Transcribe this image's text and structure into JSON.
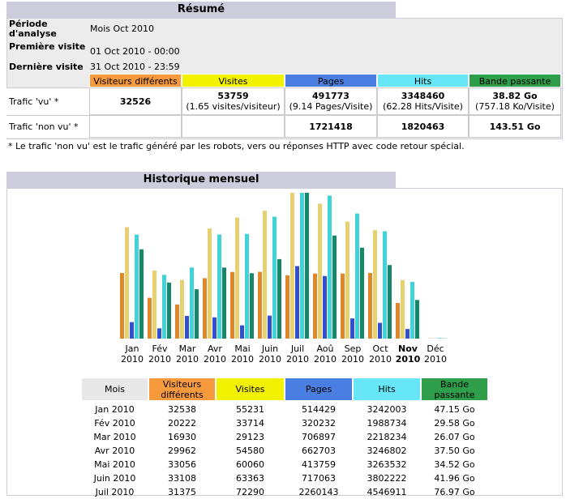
{
  "summary": {
    "title": "Résumé",
    "info": [
      {
        "label": "Période d'analyse",
        "value": "Mois Oct 2010"
      },
      {
        "label": "Première visite",
        "value": "01 Oct 2010 - 00:00"
      },
      {
        "label": "Dernière visite",
        "value": "31 Oct 2010 - 23:59"
      }
    ],
    "columns": [
      {
        "label": "Visiteurs différents",
        "color": "#f79a3e"
      },
      {
        "label": "Visites",
        "color": "#f2f200"
      },
      {
        "label": "Pages",
        "color": "#4a7ee0"
      },
      {
        "label": "Hits",
        "color": "#66e6f6"
      },
      {
        "label": "Bande passante",
        "color": "#2e9e4a"
      }
    ],
    "rows": [
      {
        "label": "Trafic 'vu' *",
        "cells": [
          {
            "value": "32526"
          },
          {
            "value": "53759",
            "note": "(1.65 visites/visiteur)"
          },
          {
            "value": "491773",
            "note": "(9.14 Pages/Visite)"
          },
          {
            "value": "3348460",
            "note": "(62.28 Hits/Visite)"
          },
          {
            "value": "38.82 Go",
            "note": "(757.18 Ko/Visite)"
          }
        ]
      },
      {
        "label": "Trafic 'non vu' *",
        "cells": [
          null,
          null,
          {
            "value": "1721418"
          },
          {
            "value": "1820463"
          },
          {
            "value": "143.51 Go"
          }
        ]
      }
    ],
    "footnote": "* Le trafic 'non vu' est le trafic généré par les robots, vers ou réponses HTTP avec code retour spécial."
  },
  "history": {
    "title": "Historique mensuel",
    "months": [
      "Jan",
      "Fév",
      "Mar",
      "Avr",
      "Mai",
      "Juin",
      "Juil",
      "Aoû",
      "Sep",
      "Oct",
      "Nov",
      "Déc"
    ],
    "years": [
      "2010",
      "2010",
      "2010",
      "2010",
      "2010",
      "2010",
      "2010",
      "2010",
      "2010",
      "2010",
      "2010",
      "2010"
    ],
    "series": [
      {
        "color": "#e0872a",
        "values": [
          32538,
          20222,
          16930,
          29962,
          33056,
          33108,
          31375,
          32250,
          32250,
          32526,
          17700,
          0
        ]
      },
      {
        "color": "#e6d070",
        "values": [
          55231,
          33714,
          29123,
          54580,
          60060,
          63363,
          72290,
          66900,
          58000,
          53759,
          29000,
          200
        ]
      },
      {
        "color": "#3050d0",
        "values": [
          514429,
          320232,
          706897,
          662703,
          413759,
          717063,
          2260143,
          1950000,
          630000,
          491773,
          300000,
          5000
        ]
      },
      {
        "color": "#40d4d8",
        "values": [
          3242003,
          1988734,
          2218234,
          3246802,
          3263532,
          3802222,
          4546911,
          4460000,
          3900000,
          3348460,
          1770000,
          20000
        ]
      },
      {
        "color": "#17876a",
        "values": [
          47.15,
          29.58,
          26.07,
          37.5,
          34.52,
          41.96,
          76.97,
          54.4,
          48.0,
          38.82,
          20.4,
          0.1
        ]
      }
    ],
    "table": {
      "columns": [
        {
          "label": "Mois",
          "color": "#e8e8e8"
        },
        {
          "label": "Visiteurs différents",
          "color": "#f79a3e"
        },
        {
          "label": "Visites",
          "color": "#f2f200"
        },
        {
          "label": "Pages",
          "color": "#4a7ee0"
        },
        {
          "label": "Hits",
          "color": "#66e6f6"
        },
        {
          "label": "Bande passante",
          "color": "#2e9e4a"
        }
      ],
      "rows": [
        [
          "Jan 2010",
          32538,
          55231,
          514429,
          3242003,
          "47.15 Go"
        ],
        [
          "Fév 2010",
          20222,
          33714,
          320232,
          1988734,
          "29.58 Go"
        ],
        [
          "Mar 2010",
          16930,
          29123,
          706897,
          2218234,
          "26.07 Go"
        ],
        [
          "Avr 2010",
          29962,
          54580,
          662703,
          3246802,
          "37.50 Go"
        ],
        [
          "Mai 2010",
          33056,
          60060,
          413759,
          3263532,
          "34.52 Go"
        ],
        [
          "Juin 2010",
          33108,
          63363,
          717063,
          3802222,
          "41.96 Go"
        ],
        [
          "Juil 2010",
          31375,
          72290,
          2260143,
          4546911,
          "76.97 Go"
        ]
      ]
    }
  }
}
